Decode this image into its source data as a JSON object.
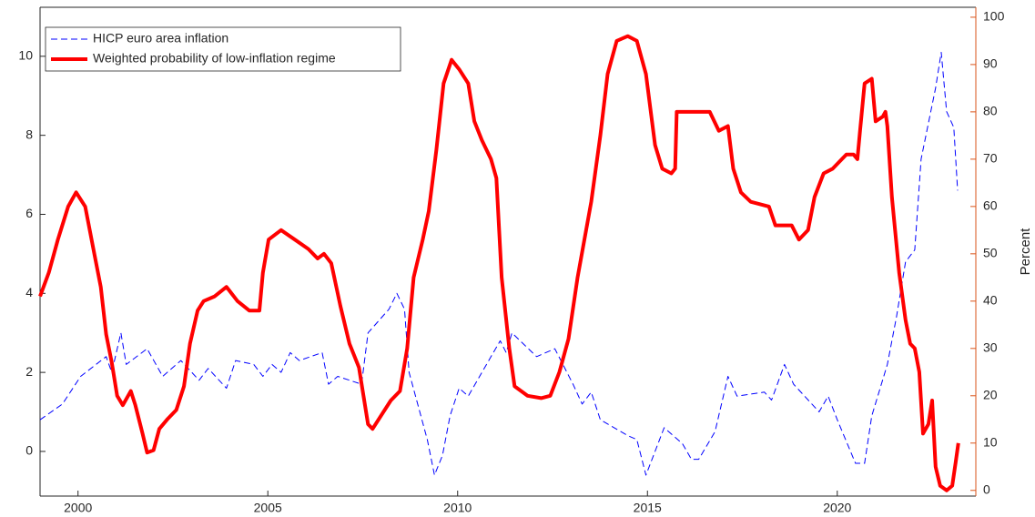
{
  "chart_data": {
    "type": "line",
    "xlim": [
      1999,
      2023.65
    ],
    "xticks": [
      2000,
      2005,
      2010,
      2015,
      2020
    ],
    "ylim": [
      -1.13,
      11.24
    ],
    "yticks": [
      0,
      2,
      4,
      6,
      8,
      10
    ],
    "y2lim": [
      -1.2,
      102.1
    ],
    "y2ticks": [
      0,
      10,
      20,
      30,
      40,
      50,
      60,
      70,
      80,
      90,
      100
    ],
    "y2label": "Percent",
    "y2color": "#d95319",
    "legend": "upper left",
    "series": [
      {
        "name": "HICP euro area inflation",
        "color": "#0000ff",
        "style": "dashed",
        "x": [
          1999.0,
          1999.59,
          2000.07,
          2000.74,
          2000.89,
          2001.13,
          2001.27,
          2001.82,
          2002.23,
          2002.71,
          2003.19,
          2003.43,
          2003.91,
          2004.15,
          2004.63,
          2004.87,
          2005.11,
          2005.35,
          2005.59,
          2005.83,
          2006.43,
          2006.6,
          2006.84,
          2007.47,
          2007.64,
          2008.19,
          2008.4,
          2008.6,
          2008.72,
          2009.2,
          2009.39,
          2009.6,
          2009.8,
          2010.04,
          2010.28,
          2010.88,
          2011.12,
          2011.28,
          2011.43,
          2012.08,
          2012.56,
          2013.04,
          2013.28,
          2013.52,
          2013.76,
          2014.48,
          2014.72,
          2014.96,
          2015.44,
          2015.92,
          2016.16,
          2016.35,
          2016.78,
          2017.12,
          2017.36,
          2018.08,
          2018.27,
          2018.61,
          2018.85,
          2019.52,
          2019.76,
          2020.0,
          2020.48,
          2020.72,
          2020.91,
          2021.32,
          2021.56,
          2021.8,
          2022.04,
          2022.21,
          2022.59,
          2022.74,
          2022.88,
          2023.07,
          2023.17
        ],
        "values": [
          0.8,
          1.2,
          1.9,
          2.4,
          2.0,
          3.0,
          2.2,
          2.6,
          1.9,
          2.3,
          1.8,
          2.1,
          1.6,
          2.3,
          2.2,
          1.9,
          2.2,
          2.0,
          2.5,
          2.3,
          2.5,
          1.7,
          1.9,
          1.7,
          3.0,
          3.6,
          4.0,
          3.6,
          2.0,
          0.3,
          -0.6,
          -0.1,
          0.9,
          1.6,
          1.4,
          2.4,
          2.8,
          2.5,
          3.0,
          2.4,
          2.6,
          1.7,
          1.2,
          1.5,
          0.8,
          0.4,
          0.3,
          -0.6,
          0.6,
          0.2,
          -0.2,
          -0.2,
          0.5,
          1.9,
          1.4,
          1.5,
          1.3,
          2.2,
          1.7,
          1.0,
          1.4,
          0.8,
          -0.3,
          -0.3,
          0.9,
          2.2,
          3.4,
          4.8,
          5.1,
          7.4,
          9.2,
          10.1,
          8.6,
          8.2,
          6.6
        ]
      },
      {
        "name": "Weighted probability of low-inflation regime",
        "color": "#ff0000",
        "style": "solid",
        "axis": "y2",
        "x": [
          1999.0,
          1999.23,
          1999.47,
          1999.74,
          1999.95,
          2000.19,
          2000.43,
          2000.6,
          2000.74,
          2000.89,
          2001.03,
          2001.18,
          2001.39,
          2001.51,
          2001.7,
          2001.82,
          2001.99,
          2002.14,
          2002.35,
          2002.59,
          2002.79,
          2002.95,
          2003.15,
          2003.31,
          2003.6,
          2003.91,
          2004.2,
          2004.51,
          2004.78,
          2004.87,
          2005.02,
          2005.35,
          2005.71,
          2006.07,
          2006.31,
          2006.48,
          2006.67,
          2006.91,
          2007.15,
          2007.4,
          2007.64,
          2007.76,
          2008.0,
          2008.24,
          2008.48,
          2008.67,
          2008.84,
          2009.08,
          2009.24,
          2009.44,
          2009.63,
          2009.84,
          2010.04,
          2010.28,
          2010.44,
          2010.64,
          2010.88,
          2011.02,
          2011.16,
          2011.36,
          2011.5,
          2011.84,
          2012.2,
          2012.44,
          2012.68,
          2012.92,
          2013.16,
          2013.52,
          2013.76,
          2013.95,
          2014.19,
          2014.48,
          2014.72,
          2014.96,
          2015.2,
          2015.39,
          2015.63,
          2015.73,
          2015.77,
          2016.16,
          2016.64,
          2016.88,
          2017.12,
          2017.26,
          2017.46,
          2017.72,
          2018.2,
          2018.37,
          2018.8,
          2018.99,
          2019.23,
          2019.4,
          2019.64,
          2019.88,
          2020.12,
          2020.24,
          2020.43,
          2020.53,
          2020.6,
          2020.72,
          2020.91,
          2021.01,
          2021.2,
          2021.27,
          2021.32,
          2021.44,
          2021.63,
          2021.8,
          2021.92,
          2022.04,
          2022.16,
          2022.26,
          2022.4,
          2022.5,
          2022.59,
          2022.71,
          2022.88,
          2023.03,
          2023.12,
          2023.19
        ],
        "values": [
          41,
          46,
          53,
          60,
          63,
          60,
          50,
          43,
          33,
          27,
          20,
          18,
          21,
          18,
          12,
          8,
          8.5,
          13,
          15,
          17,
          22,
          31,
          38,
          40,
          41,
          43,
          40,
          38,
          38,
          46,
          53,
          55,
          53,
          51,
          49,
          50,
          48,
          39,
          31,
          26,
          14,
          13,
          16,
          19,
          21,
          30,
          45,
          53,
          59,
          72,
          86,
          91,
          89,
          86,
          78,
          74,
          70,
          66,
          45,
          30,
          22,
          20,
          19.5,
          20,
          25,
          32,
          45,
          61,
          75,
          88,
          95,
          96,
          95,
          88,
          73,
          68,
          67,
          68,
          80,
          80,
          80,
          76,
          77,
          68,
          63,
          61,
          60,
          56,
          56,
          53,
          55,
          62,
          67,
          68,
          70,
          71,
          71,
          70,
          76,
          86,
          87,
          78,
          79,
          80,
          77,
          62,
          46,
          36,
          31,
          30,
          25,
          12,
          14,
          19,
          5,
          1,
          0,
          1,
          6,
          10
        ]
      }
    ]
  }
}
